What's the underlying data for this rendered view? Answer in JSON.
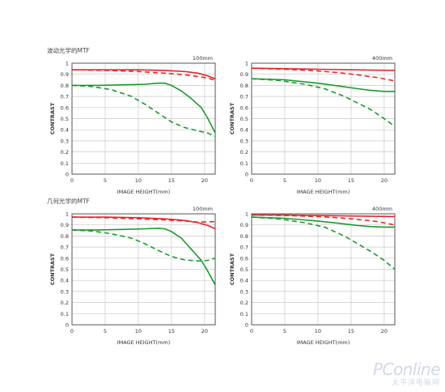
{
  "sections": [
    {
      "title": "波动光学的MTF"
    },
    {
      "title": "几何光学的MTF"
    }
  ],
  "watermark": {
    "main": "PConline",
    "sub": "太平洋电脑网"
  },
  "chart_data": [
    {
      "type": "line",
      "panel": "diffraction-100mm",
      "title": "100mm",
      "xlabel": "IMAGE HEIGHT(mm)",
      "ylabel": "CONTRAST",
      "xlim": [
        0,
        21.6
      ],
      "ylim": [
        0,
        1
      ],
      "xticks": [
        0,
        5,
        10,
        15,
        20
      ],
      "yticks": [
        0,
        0.1,
        0.2,
        0.3,
        0.4,
        0.5,
        0.6,
        0.7,
        0.8,
        0.9,
        1
      ],
      "grid": true,
      "series": [
        {
          "color": "#e8262b",
          "style": "solid",
          "points": [
            [
              0,
              0.94
            ],
            [
              5,
              0.94
            ],
            [
              10,
              0.94
            ],
            [
              14,
              0.935
            ],
            [
              17,
              0.925
            ],
            [
              19,
              0.91
            ],
            [
              20.5,
              0.885
            ],
            [
              21.6,
              0.86
            ]
          ]
        },
        {
          "color": "#e8262b",
          "style": "dashed",
          "points": [
            [
              0,
              0.94
            ],
            [
              5,
              0.935
            ],
            [
              10,
              0.925
            ],
            [
              14,
              0.91
            ],
            [
              17,
              0.895
            ],
            [
              19,
              0.88
            ],
            [
              20.5,
              0.865
            ],
            [
              21.6,
              0.845
            ]
          ]
        },
        {
          "color": "#1a9a2e",
          "style": "solid",
          "points": [
            [
              0,
              0.8
            ],
            [
              4,
              0.8
            ],
            [
              8,
              0.805
            ],
            [
              11,
              0.81
            ],
            [
              13,
              0.82
            ],
            [
              14,
              0.82
            ],
            [
              15,
              0.8
            ],
            [
              16.5,
              0.75
            ],
            [
              18,
              0.68
            ],
            [
              19.5,
              0.6
            ],
            [
              20.5,
              0.5
            ],
            [
              21.6,
              0.37
            ]
          ]
        },
        {
          "color": "#1a9a2e",
          "style": "dashed",
          "points": [
            [
              0,
              0.8
            ],
            [
              3,
              0.79
            ],
            [
              6,
              0.76
            ],
            [
              9,
              0.7
            ],
            [
              11,
              0.63
            ],
            [
              13,
              0.55
            ],
            [
              15,
              0.47
            ],
            [
              17,
              0.42
            ],
            [
              19,
              0.39
            ],
            [
              20.5,
              0.37
            ],
            [
              21.6,
              0.34
            ]
          ]
        }
      ]
    },
    {
      "type": "line",
      "panel": "diffraction-400mm",
      "title": "400mm",
      "xlabel": "IMAGE HEIGHT(mm)",
      "ylabel": "CONTRAST",
      "xlim": [
        0,
        21.6
      ],
      "ylim": [
        0,
        1
      ],
      "xticks": [
        0,
        5,
        10,
        15,
        20
      ],
      "yticks": [
        0,
        0.1,
        0.2,
        0.3,
        0.4,
        0.5,
        0.6,
        0.7,
        0.8,
        0.9,
        1
      ],
      "grid": true,
      "series": [
        {
          "color": "#e8262b",
          "style": "solid",
          "points": [
            [
              0,
              0.955
            ],
            [
              5,
              0.95
            ],
            [
              10,
              0.945
            ],
            [
              15,
              0.94
            ],
            [
              21.6,
              0.935
            ]
          ]
        },
        {
          "color": "#e8262b",
          "style": "dashed",
          "points": [
            [
              0,
              0.955
            ],
            [
              5,
              0.945
            ],
            [
              10,
              0.93
            ],
            [
              13,
              0.915
            ],
            [
              16,
              0.895
            ],
            [
              19,
              0.87
            ],
            [
              21.6,
              0.84
            ]
          ]
        },
        {
          "color": "#1a9a2e",
          "style": "solid",
          "points": [
            [
              0,
              0.86
            ],
            [
              5,
              0.85
            ],
            [
              10,
              0.82
            ],
            [
              13,
              0.795
            ],
            [
              16,
              0.77
            ],
            [
              18,
              0.755
            ],
            [
              20,
              0.745
            ],
            [
              21.6,
              0.745
            ]
          ]
        },
        {
          "color": "#1a9a2e",
          "style": "dashed",
          "points": [
            [
              0,
              0.86
            ],
            [
              4,
              0.845
            ],
            [
              8,
              0.81
            ],
            [
              11,
              0.77
            ],
            [
              14,
              0.7
            ],
            [
              16,
              0.64
            ],
            [
              18,
              0.58
            ],
            [
              20,
              0.5
            ],
            [
              21.6,
              0.43
            ]
          ]
        }
      ]
    },
    {
      "type": "line",
      "panel": "geometric-100mm",
      "title": "100mm",
      "xlabel": "IMAGE HEIGHT(mm)",
      "ylabel": "CONTRAST",
      "xlim": [
        0,
        21.6
      ],
      "ylim": [
        0,
        1
      ],
      "xticks": [
        0,
        5,
        10,
        15,
        20
      ],
      "yticks": [
        0,
        0.1,
        0.2,
        0.3,
        0.4,
        0.5,
        0.6,
        0.7,
        0.8,
        0.9,
        1
      ],
      "grid": true,
      "series": [
        {
          "color": "#e8262b",
          "style": "solid",
          "points": [
            [
              0,
              0.97
            ],
            [
              5,
              0.97
            ],
            [
              10,
              0.965
            ],
            [
              14,
              0.955
            ],
            [
              17,
              0.94
            ],
            [
              19,
              0.92
            ],
            [
              20.5,
              0.895
            ],
            [
              21.6,
              0.865
            ]
          ]
        },
        {
          "color": "#e8262b",
          "style": "dashed",
          "points": [
            [
              0,
              0.97
            ],
            [
              5,
              0.965
            ],
            [
              10,
              0.955
            ],
            [
              14,
              0.945
            ],
            [
              17,
              0.935
            ],
            [
              19,
              0.925
            ],
            [
              21.6,
              0.93
            ]
          ]
        },
        {
          "color": "#1a9a2e",
          "style": "solid",
          "points": [
            [
              0,
              0.855
            ],
            [
              4,
              0.855
            ],
            [
              8,
              0.86
            ],
            [
              11,
              0.865
            ],
            [
              13,
              0.87
            ],
            [
              14,
              0.865
            ],
            [
              15,
              0.84
            ],
            [
              16.5,
              0.78
            ],
            [
              18,
              0.68
            ],
            [
              19.5,
              0.58
            ],
            [
              20.5,
              0.48
            ],
            [
              21.6,
              0.36
            ]
          ]
        },
        {
          "color": "#1a9a2e",
          "style": "dashed",
          "points": [
            [
              0,
              0.855
            ],
            [
              3,
              0.845
            ],
            [
              6,
              0.82
            ],
            [
              9,
              0.78
            ],
            [
              11,
              0.73
            ],
            [
              13,
              0.67
            ],
            [
              15,
              0.615
            ],
            [
              17,
              0.585
            ],
            [
              19,
              0.575
            ],
            [
              20.5,
              0.58
            ],
            [
              21.6,
              0.6
            ]
          ]
        }
      ]
    },
    {
      "type": "line",
      "panel": "geometric-400mm",
      "title": "400mm",
      "xlabel": "IMAGE HEIGHT(mm)",
      "ylabel": "CONTRAST",
      "xlim": [
        0,
        21.6
      ],
      "ylim": [
        0,
        1
      ],
      "xticks": [
        0,
        5,
        10,
        15,
        20
      ],
      "yticks": [
        0,
        0.1,
        0.2,
        0.3,
        0.4,
        0.5,
        0.6,
        0.7,
        0.8,
        0.9,
        1
      ],
      "grid": true,
      "series": [
        {
          "color": "#e8262b",
          "style": "solid",
          "points": [
            [
              0,
              0.99
            ],
            [
              5,
              0.99
            ],
            [
              10,
              0.985
            ],
            [
              15,
              0.98
            ],
            [
              21.6,
              0.975
            ]
          ]
        },
        {
          "color": "#e8262b",
          "style": "dashed",
          "points": [
            [
              0,
              0.99
            ],
            [
              5,
              0.985
            ],
            [
              10,
              0.975
            ],
            [
              13,
              0.965
            ],
            [
              16,
              0.95
            ],
            [
              19,
              0.93
            ],
            [
              21.6,
              0.9
            ]
          ]
        },
        {
          "color": "#1a9a2e",
          "style": "solid",
          "points": [
            [
              0,
              0.97
            ],
            [
              5,
              0.96
            ],
            [
              10,
              0.935
            ],
            [
              13,
              0.915
            ],
            [
              16,
              0.895
            ],
            [
              18,
              0.885
            ],
            [
              20,
              0.88
            ],
            [
              21.6,
              0.88
            ]
          ]
        },
        {
          "color": "#1a9a2e",
          "style": "dashed",
          "points": [
            [
              0,
              0.97
            ],
            [
              4,
              0.955
            ],
            [
              8,
              0.92
            ],
            [
              11,
              0.88
            ],
            [
              14,
              0.8
            ],
            [
              16,
              0.73
            ],
            [
              18,
              0.66
            ],
            [
              20,
              0.58
            ],
            [
              21.6,
              0.5
            ]
          ]
        }
      ]
    }
  ]
}
